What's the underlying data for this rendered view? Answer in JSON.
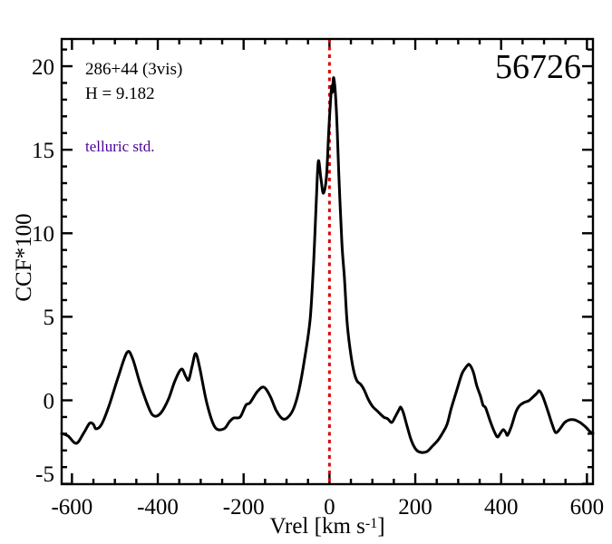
{
  "figure": {
    "annotations": {
      "target": "286+44 (3vis)",
      "magnitude": "H = 9.182",
      "note": "telluric std.",
      "note_color": "#4b0096",
      "mjd": "56726"
    }
  },
  "chart_data": {
    "type": "line",
    "title": "",
    "xlabel_pre": "Vrel [km s",
    "xlabel_sup": "-1",
    "xlabel_post": "]",
    "ylabel": "CCF*100",
    "xlim": [
      -624,
      614
    ],
    "ylim": [
      -5.02,
      21.63
    ],
    "x_major_ticks": [
      -600,
      -400,
      -200,
      0,
      200,
      400,
      600
    ],
    "x_tick_labels": [
      "-600",
      "-400",
      "-200",
      "0",
      "200",
      "400",
      "600"
    ],
    "x_minor_step": 50,
    "y_major_ticks": [
      -5,
      0,
      5,
      10,
      15,
      20
    ],
    "y_tick_labels": [
      "-5",
      "0",
      "5",
      "10",
      "15",
      "20"
    ],
    "y_minor_step": 1,
    "grid": false,
    "legend": null,
    "line_color": "#000000",
    "ref_line": {
      "x": 0,
      "color": "#e10000",
      "style": "dotted"
    },
    "series": [
      {
        "name": "CCF",
        "points": [
          [
            -624,
            -1.98
          ],
          [
            -609,
            -2.14
          ],
          [
            -590,
            -2.58
          ],
          [
            -573,
            -1.98
          ],
          [
            -559,
            -1.38
          ],
          [
            -550,
            -1.44
          ],
          [
            -544,
            -1.71
          ],
          [
            -531,
            -1.44
          ],
          [
            -514,
            -0.35
          ],
          [
            -493,
            1.33
          ],
          [
            -472,
            2.85
          ],
          [
            -459,
            2.52
          ],
          [
            -440,
            0.9
          ],
          [
            -419,
            -0.57
          ],
          [
            -407,
            -0.95
          ],
          [
            -392,
            -0.73
          ],
          [
            -375,
            0.08
          ],
          [
            -360,
            1.17
          ],
          [
            -345,
            1.87
          ],
          [
            -335,
            1.44
          ],
          [
            -328,
            1.22
          ],
          [
            -320,
            2.04
          ],
          [
            -312,
            2.8
          ],
          [
            -303,
            2.04
          ],
          [
            -286,
            -0.14
          ],
          [
            -267,
            -1.6
          ],
          [
            -246,
            -1.71
          ],
          [
            -233,
            -1.28
          ],
          [
            -223,
            -1.06
          ],
          [
            -208,
            -1.0
          ],
          [
            -195,
            -0.3
          ],
          [
            -185,
            -0.14
          ],
          [
            -168,
            0.52
          ],
          [
            -153,
            0.79
          ],
          [
            -138,
            0.24
          ],
          [
            -124,
            -0.62
          ],
          [
            -109,
            -1.11
          ],
          [
            -96,
            -1.0
          ],
          [
            -83,
            -0.46
          ],
          [
            -71,
            0.62
          ],
          [
            -58,
            2.47
          ],
          [
            -45,
            4.86
          ],
          [
            -37,
            8.22
          ],
          [
            -31,
            11.75
          ],
          [
            -26,
            14.3
          ],
          [
            -20,
            13.3
          ],
          [
            -14,
            12.4
          ],
          [
            -7,
            13.4
          ],
          [
            -1,
            16.4
          ],
          [
            5,
            18.75
          ],
          [
            7,
            18.45
          ],
          [
            10,
            19.3
          ],
          [
            16,
            17.45
          ],
          [
            22,
            13.4
          ],
          [
            29,
            9.4
          ],
          [
            35,
            7.3
          ],
          [
            41,
            4.7
          ],
          [
            48,
            3.07
          ],
          [
            56,
            1.82
          ],
          [
            64,
            1.17
          ],
          [
            73,
            0.95
          ],
          [
            81,
            0.62
          ],
          [
            90,
            0.08
          ],
          [
            100,
            -0.35
          ],
          [
            113,
            -0.68
          ],
          [
            126,
            -1.0
          ],
          [
            136,
            -1.11
          ],
          [
            145,
            -1.33
          ],
          [
            153,
            -1.0
          ],
          [
            162,
            -0.57
          ],
          [
            166,
            -0.41
          ],
          [
            172,
            -0.73
          ],
          [
            181,
            -1.55
          ],
          [
            191,
            -2.42
          ],
          [
            202,
            -2.96
          ],
          [
            214,
            -3.12
          ],
          [
            227,
            -3.07
          ],
          [
            240,
            -2.74
          ],
          [
            252,
            -2.42
          ],
          [
            263,
            -1.98
          ],
          [
            274,
            -1.44
          ],
          [
            284,
            -0.46
          ],
          [
            297,
            0.62
          ],
          [
            309,
            1.6
          ],
          [
            320,
            2.04
          ],
          [
            326,
            2.14
          ],
          [
            335,
            1.71
          ],
          [
            343,
            0.9
          ],
          [
            352,
            0.24
          ],
          [
            358,
            -0.3
          ],
          [
            364,
            -0.46
          ],
          [
            375,
            -1.28
          ],
          [
            386,
            -1.98
          ],
          [
            392,
            -2.2
          ],
          [
            398,
            -1.98
          ],
          [
            405,
            -1.76
          ],
          [
            411,
            -1.93
          ],
          [
            415,
            -2.09
          ],
          [
            424,
            -1.55
          ],
          [
            434,
            -0.73
          ],
          [
            442,
            -0.35
          ],
          [
            453,
            -0.14
          ],
          [
            464,
            -0.03
          ],
          [
            474,
            0.19
          ],
          [
            483,
            0.41
          ],
          [
            489,
            0.57
          ],
          [
            497,
            0.24
          ],
          [
            508,
            -0.57
          ],
          [
            519,
            -1.44
          ],
          [
            527,
            -1.93
          ],
          [
            537,
            -1.71
          ],
          [
            548,
            -1.33
          ],
          [
            559,
            -1.17
          ],
          [
            571,
            -1.17
          ],
          [
            584,
            -1.33
          ],
          [
            597,
            -1.6
          ],
          [
            607,
            -1.87
          ],
          [
            614,
            -1.98
          ]
        ]
      }
    ]
  }
}
